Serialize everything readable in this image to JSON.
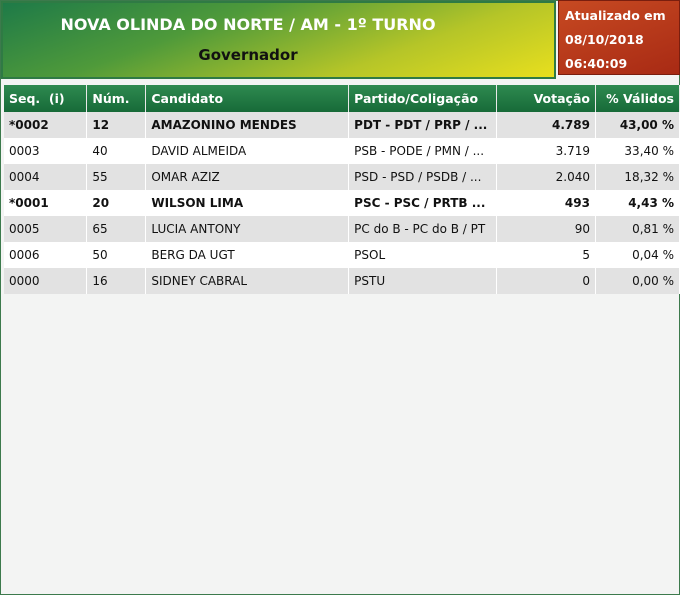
{
  "header": {
    "title": "NOVA OLINDA DO NORTE / AM - 1º TURNO",
    "subtitle": "Governador"
  },
  "update": {
    "label": "Atualizado em",
    "date": "08/10/2018",
    "time": "06:40:09"
  },
  "table": {
    "columns": [
      "Seq.  (i)",
      "Núm.",
      "Candidato",
      "Partido/Coligação",
      "Votação",
      "% Válidos"
    ],
    "rows": [
      [
        "*0002",
        "12",
        "AMAZONINO MENDES",
        "PDT - PDT / PRP / ...",
        "4.789",
        "43,00 %"
      ],
      [
        "0003",
        "40",
        "DAVID ALMEIDA",
        "PSB - PODE / PMN / ...",
        "3.719",
        "33,40 %"
      ],
      [
        "0004",
        "55",
        "OMAR AZIZ",
        "PSD - PSD / PSDB / ...",
        "2.040",
        "18,32 %"
      ],
      [
        "*0001",
        "20",
        "WILSON LIMA",
        "PSC - PSC / PRTB ...",
        "493",
        "4,43 %"
      ],
      [
        "0005",
        "65",
        "LUCIA ANTONY",
        "PC do B - PC do B / PT",
        "90",
        "0,81 %"
      ],
      [
        "0006",
        "50",
        "BERG DA UGT",
        "PSOL",
        "5",
        "0,04 %"
      ],
      [
        "0000",
        "16",
        "SIDNEY CABRAL",
        "PSTU",
        "0",
        "0,00 %"
      ]
    ]
  }
}
